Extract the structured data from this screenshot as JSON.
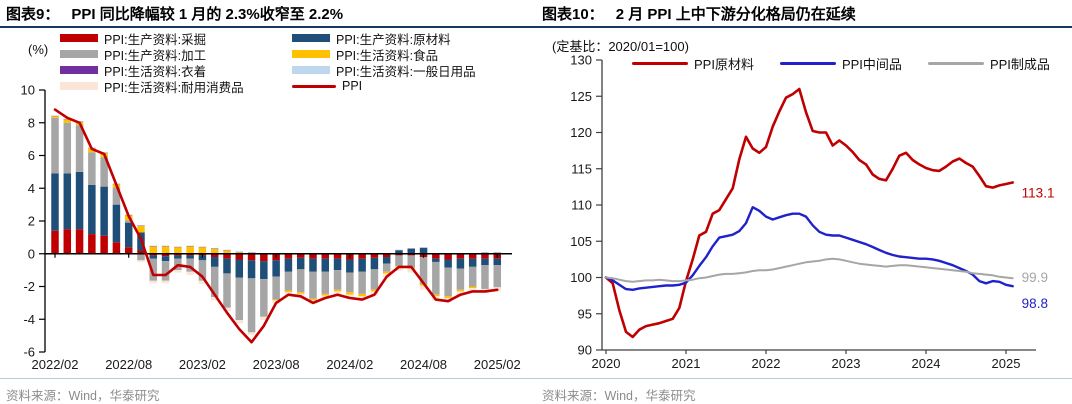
{
  "accent_colors": {
    "title_rule": "#17375E",
    "source_rule": "#b9cdd9",
    "source_text": "#8c8c8c"
  },
  "chart_data": [
    {
      "type": "bar",
      "stacked": true,
      "figure_label": "图表9：",
      "title": "PPI 同比降幅较 1 月的 2.3%收窄至 2.2%",
      "unit_label": "(%)",
      "source": "资料来源：Wind，华泰研究",
      "x_start": "2022/02",
      "x_interval": "month",
      "n_points": 37,
      "x_tick_labels": [
        "2022/02",
        "2022/08",
        "2023/02",
        "2023/08",
        "2024/02",
        "2024/08",
        "2025/02"
      ],
      "x_tick_indices": [
        0,
        6,
        12,
        18,
        24,
        30,
        36
      ],
      "ylim": [
        -6,
        10
      ],
      "y_tick_step": 2,
      "grid": false,
      "legend_position": "top",
      "series": [
        {
          "name": "PPI:生产资料:采掘",
          "color": "#C00000",
          "values": [
            1.4,
            1.5,
            1.5,
            1.2,
            1.1,
            0.7,
            0.4,
            0.2,
            -0.1,
            -0.15,
            -0.1,
            -0.1,
            -0.1,
            -0.2,
            -0.3,
            -0.35,
            -0.4,
            -0.45,
            -0.4,
            -0.3,
            -0.25,
            -0.3,
            -0.3,
            -0.3,
            -0.35,
            -0.3,
            -0.25,
            -0.2,
            -0.1,
            -0.1,
            -0.2,
            -0.3,
            -0.35,
            -0.3,
            -0.3,
            -0.3,
            -0.3
          ]
        },
        {
          "name": "PPI:生产资料:原材料",
          "color": "#1F4E79",
          "values": [
            3.5,
            3.4,
            3.5,
            3.0,
            3.0,
            2.3,
            1.5,
            1.1,
            -0.2,
            -0.3,
            -0.2,
            -0.2,
            -0.3,
            -0.6,
            -0.9,
            -1.1,
            -1.1,
            -1.1,
            -1.0,
            -0.8,
            -0.7,
            -0.8,
            -0.8,
            -0.7,
            -0.8,
            -0.8,
            -0.7,
            -0.4,
            0.2,
            0.3,
            0.35,
            -0.2,
            -0.5,
            -0.6,
            -0.5,
            -0.4,
            -0.4
          ]
        },
        {
          "name": "PPI:生产资料:加工",
          "color": "#A6A6A6",
          "values": [
            3.4,
            3.1,
            2.85,
            2.0,
            1.8,
            1.05,
            0.15,
            -0.4,
            -1.35,
            -1.2,
            -0.7,
            -0.8,
            -1.25,
            -1.85,
            -2.1,
            -2.6,
            -3.3,
            -2.3,
            -1.4,
            -1.15,
            -1.4,
            -1.65,
            -1.35,
            -1.2,
            -1.2,
            -1.35,
            -1.25,
            -0.5,
            -0.65,
            -0.75,
            -1.65,
            -2.0,
            -1.75,
            -1.3,
            -1.2,
            -1.45,
            -1.35
          ]
        },
        {
          "name": "PPI:生活资料:食品",
          "color": "#FFC000",
          "values": [
            0.1,
            0.2,
            0.2,
            0.25,
            0.25,
            0.2,
            0.3,
            0.4,
            0.45,
            0.45,
            0.4,
            0.45,
            0.4,
            0.3,
            0.2,
            0.1,
            0.05,
            0.0,
            -0.05,
            -0.1,
            -0.1,
            -0.1,
            -0.1,
            -0.1,
            -0.15,
            -0.15,
            -0.1,
            -0.1,
            -0.05,
            -0.05,
            -0.1,
            -0.1,
            -0.1,
            -0.1,
            -0.1,
            0.05,
            0.05
          ]
        },
        {
          "name": "PPI:生活资料:衣着",
          "color": "#7030A0",
          "values": [
            0.02,
            0.02,
            0.02,
            0.02,
            0.02,
            0.02,
            0.02,
            0.02,
            0.02,
            0.02,
            0.02,
            0.02,
            0.02,
            0.02,
            0.02,
            0.02,
            0.02,
            0.02,
            0.02,
            0.02,
            0.02,
            0.02,
            0.02,
            0.02,
            0.02,
            0.02,
            0.02,
            0.02,
            0.02,
            0.02,
            0.02,
            0.02,
            0.02,
            0.02,
            0.02,
            0.02,
            0.02
          ]
        },
        {
          "name": "PPI:生活资料:一般日用品",
          "color": "#BDD7EE",
          "values": [
            0.03,
            0.03,
            0.03,
            0.03,
            0.03,
            0.03,
            0.03,
            0.03,
            0.03,
            0.03,
            0.03,
            0.03,
            0.03,
            0.03,
            0.03,
            0.03,
            0.03,
            0.03,
            0.03,
            0.03,
            0.03,
            0.03,
            0.03,
            0.03,
            0.03,
            0.03,
            0.03,
            0.03,
            0.03,
            0.03,
            0.03,
            0.03,
            0.03,
            0.03,
            0.03,
            0.03,
            0.03
          ]
        },
        {
          "name": "PPI:生活资料:耐用消费品",
          "color": "#FBE5D6",
          "values": [
            -0.05,
            -0.05,
            -0.05,
            -0.05,
            -0.05,
            -0.05,
            -0.05,
            -0.1,
            -0.15,
            -0.15,
            -0.15,
            -0.2,
            -0.2,
            -0.2,
            -0.2,
            -0.2,
            -0.15,
            -0.2,
            -0.2,
            -0.2,
            -0.2,
            -0.2,
            -0.2,
            -0.25,
            -0.25,
            -0.25,
            -0.25,
            -0.25,
            -0.25,
            -0.25,
            -0.25,
            -0.25,
            -0.25,
            -0.25,
            -0.25,
            -0.25,
            -0.25
          ]
        }
      ],
      "line_series": {
        "name": "PPI",
        "color": "#C00000",
        "values": [
          8.8,
          8.3,
          8.0,
          6.4,
          6.1,
          4.2,
          2.3,
          0.9,
          -1.3,
          -1.3,
          -0.7,
          -0.8,
          -1.4,
          -2.5,
          -3.6,
          -4.6,
          -5.4,
          -4.4,
          -3.0,
          -2.5,
          -2.6,
          -3.0,
          -2.7,
          -2.5,
          -2.7,
          -2.8,
          -2.5,
          -1.4,
          -0.8,
          -0.8,
          -1.8,
          -2.8,
          -2.9,
          -2.5,
          -2.3,
          -2.3,
          -2.2
        ]
      }
    },
    {
      "type": "line",
      "figure_label": "图表10：",
      "title": "2 月 PPI 上中下游分化格局仍在延续",
      "subtitle": "(定基比：2020/01=100)",
      "source": "资料来源：Wind，华泰研究",
      "x_start": "2020/01",
      "x_interval": "month",
      "n_points": 62,
      "x_tick_labels": [
        "2020",
        "2021",
        "2022",
        "2023",
        "2024",
        "2025"
      ],
      "x_tick_indices": [
        0,
        12,
        24,
        36,
        48,
        60
      ],
      "ylim": [
        90,
        130
      ],
      "y_tick_step": 5,
      "grid": false,
      "legend_position": "top",
      "series": [
        {
          "name": "PPI原材料",
          "color": "#C00000",
          "end_label": "113.1",
          "values": [
            100.0,
            99.2,
            95.5,
            92.5,
            91.8,
            92.8,
            93.3,
            93.5,
            93.7,
            94.0,
            94.3,
            95.8,
            99.5,
            102.5,
            105.8,
            106.3,
            108.8,
            109.3,
            110.8,
            112.3,
            116.3,
            119.4,
            117.8,
            117.2,
            118.0,
            120.8,
            122.9,
            124.8,
            125.3,
            126.0,
            122.8,
            120.2,
            120.0,
            120.0,
            118.2,
            118.9,
            118.2,
            117.3,
            116.2,
            115.6,
            114.2,
            113.6,
            113.4,
            115.0,
            116.8,
            117.2,
            116.2,
            115.6,
            115.1,
            114.8,
            114.7,
            115.3,
            116.0,
            116.4,
            115.8,
            115.3,
            114.0,
            112.6,
            112.4,
            112.7,
            112.9,
            113.1
          ]
        },
        {
          "name": "PPI中间品",
          "color": "#2121CC",
          "end_label": "98.8",
          "values": [
            100.0,
            99.6,
            99.0,
            98.4,
            98.3,
            98.5,
            98.6,
            98.7,
            98.8,
            98.9,
            98.9,
            99.0,
            99.3,
            100.3,
            101.6,
            102.8,
            104.3,
            105.5,
            105.7,
            105.9,
            106.4,
            107.5,
            109.7,
            109.2,
            108.4,
            108.0,
            108.3,
            108.6,
            108.8,
            108.8,
            108.4,
            107.2,
            106.3,
            105.9,
            105.8,
            105.8,
            105.5,
            105.2,
            104.9,
            104.6,
            104.2,
            103.8,
            103.4,
            103.1,
            102.9,
            102.8,
            102.7,
            102.6,
            102.6,
            102.5,
            102.3,
            102.0,
            101.7,
            101.3,
            100.9,
            100.4,
            99.5,
            99.2,
            99.5,
            99.4,
            99.0,
            98.8
          ]
        },
        {
          "name": "PPI制成品",
          "color": "#A6A6A6",
          "end_label": "99.9",
          "values": [
            100.0,
            99.9,
            99.7,
            99.5,
            99.4,
            99.5,
            99.6,
            99.6,
            99.7,
            99.6,
            99.5,
            99.5,
            99.6,
            99.7,
            99.9,
            100.0,
            100.2,
            100.4,
            100.5,
            100.5,
            100.6,
            100.7,
            100.9,
            101.0,
            101.0,
            101.1,
            101.3,
            101.5,
            101.7,
            101.9,
            102.1,
            102.2,
            102.3,
            102.5,
            102.6,
            102.5,
            102.3,
            102.1,
            101.9,
            101.8,
            101.7,
            101.6,
            101.5,
            101.6,
            101.7,
            101.7,
            101.6,
            101.5,
            101.4,
            101.3,
            101.2,
            101.1,
            101.0,
            100.9,
            100.8,
            100.6,
            100.5,
            100.4,
            100.3,
            100.1,
            100.0,
            99.9
          ]
        }
      ]
    }
  ]
}
